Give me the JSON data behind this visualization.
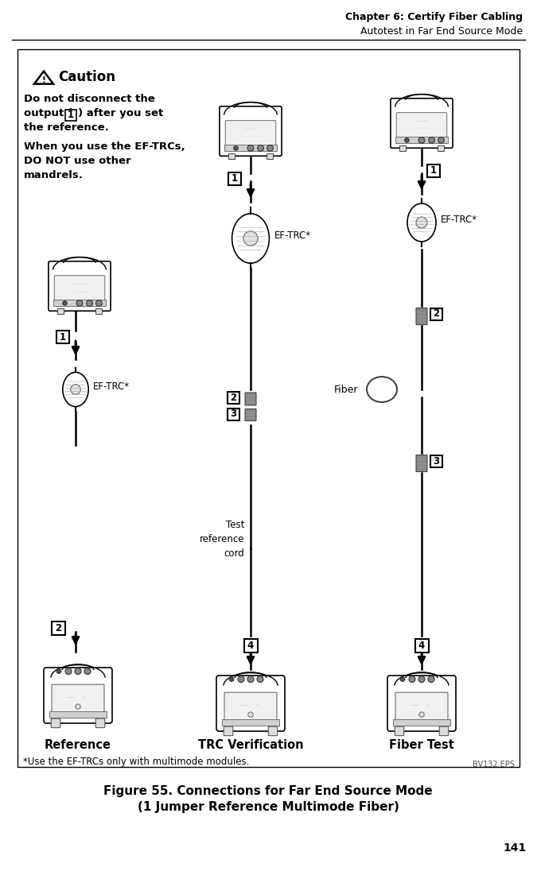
{
  "header_line1": "Chapter 6: Certify Fiber Cabling",
  "header_line2": "Autotest in Far End Source Mode",
  "figure_caption_line1": "Figure 55. Connections for Far End Source Mode",
  "figure_caption_line2": "(1 Jumper Reference Multimode Fiber)",
  "page_number": "141",
  "file_ref": "BV132.EPS",
  "caution_title": "Caution",
  "footnote": "*Use the EF-TRCs only with multimode modules.",
  "label_reference": "Reference",
  "label_trc": "TRC Verification",
  "label_fiber": "Fiber Test",
  "label_eftrc": "EF-TRC*",
  "label_test_cord_line1": "Test",
  "label_test_cord_line2": "reference",
  "label_test_cord_line3": "cord",
  "label_fiber_mid": "Fiber",
  "bg_color": "#ffffff",
  "border_color": "#000000",
  "text_color": "#000000"
}
